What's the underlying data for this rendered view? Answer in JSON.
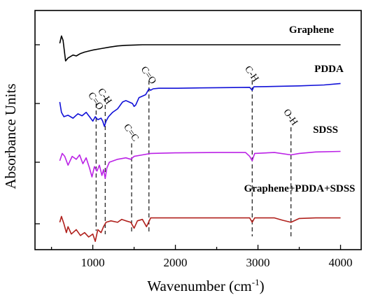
{
  "chart_data": {
    "type": "line",
    "xlabel": "Wavenumber (cm",
    "xlabel_sup": "-1",
    "xlabel_tail": ")",
    "ylabel": "Absorbance Units",
    "xlim": [
      300,
      4250
    ],
    "x_ticks": [
      1000,
      2000,
      3000,
      4000
    ],
    "x_tick_labels": [
      "1000",
      "2000",
      "3000",
      "4000"
    ],
    "grid": false,
    "series": [
      {
        "name": "Graphene",
        "color": "#000000",
        "points": [
          [
            600,
            0.05
          ],
          [
            620,
            0.3
          ],
          [
            640,
            0.15
          ],
          [
            670,
            -0.55
          ],
          [
            700,
            -0.45
          ],
          [
            760,
            -0.35
          ],
          [
            800,
            -0.38
          ],
          [
            850,
            -0.3
          ],
          [
            900,
            -0.25
          ],
          [
            1000,
            -0.18
          ],
          [
            1100,
            -0.13
          ],
          [
            1200,
            -0.08
          ],
          [
            1300,
            -0.04
          ],
          [
            1400,
            -0.02
          ],
          [
            1500,
            -0.01
          ],
          [
            1600,
            0.0
          ],
          [
            1800,
            0.0
          ],
          [
            2000,
            0.0
          ],
          [
            2500,
            0.0
          ],
          [
            3000,
            0.0
          ],
          [
            3500,
            0.0
          ],
          [
            4000,
            0.0
          ]
        ]
      },
      {
        "name": "PDDA",
        "color": "#1010d8",
        "points": [
          [
            600,
            0.05
          ],
          [
            620,
            -0.3
          ],
          [
            650,
            -0.45
          ],
          [
            700,
            -0.4
          ],
          [
            760,
            -0.5
          ],
          [
            820,
            -0.35
          ],
          [
            870,
            -0.42
          ],
          [
            920,
            -0.3
          ],
          [
            960,
            -0.45
          ],
          [
            1000,
            -0.6
          ],
          [
            1030,
            -0.45
          ],
          [
            1060,
            -0.55
          ],
          [
            1100,
            -0.5
          ],
          [
            1120,
            -0.6
          ],
          [
            1140,
            -0.78
          ],
          [
            1160,
            -0.6
          ],
          [
            1190,
            -0.45
          ],
          [
            1240,
            -0.3
          ],
          [
            1300,
            -0.18
          ],
          [
            1360,
            0.05
          ],
          [
            1400,
            0.1
          ],
          [
            1440,
            0.05
          ],
          [
            1480,
            0.0
          ],
          [
            1500,
            -0.1
          ],
          [
            1520,
            -0.05
          ],
          [
            1560,
            0.2
          ],
          [
            1600,
            0.25
          ],
          [
            1640,
            0.3
          ],
          [
            1680,
            0.5
          ],
          [
            1700,
            0.45
          ],
          [
            1730,
            0.5
          ],
          [
            1800,
            0.52
          ],
          [
            2000,
            0.52
          ],
          [
            2300,
            0.53
          ],
          [
            2600,
            0.54
          ],
          [
            2900,
            0.55
          ],
          [
            2930,
            0.45
          ],
          [
            2950,
            0.57
          ],
          [
            3200,
            0.58
          ],
          [
            3500,
            0.6
          ],
          [
            3800,
            0.63
          ],
          [
            4000,
            0.68
          ]
        ]
      },
      {
        "name": "SDSS",
        "color": "#bb22e6",
        "points": [
          [
            600,
            0.05
          ],
          [
            630,
            0.3
          ],
          [
            660,
            0.2
          ],
          [
            700,
            -0.1
          ],
          [
            750,
            0.2
          ],
          [
            800,
            0.1
          ],
          [
            840,
            0.25
          ],
          [
            880,
            -0.05
          ],
          [
            920,
            0.15
          ],
          [
            960,
            -0.2
          ],
          [
            990,
            -0.5
          ],
          [
            1020,
            -0.15
          ],
          [
            1050,
            -0.3
          ],
          [
            1080,
            -0.1
          ],
          [
            1110,
            -0.45
          ],
          [
            1130,
            -0.25
          ],
          [
            1150,
            -0.55
          ],
          [
            1170,
            -0.2
          ],
          [
            1200,
            0.0
          ],
          [
            1300,
            0.1
          ],
          [
            1400,
            0.15
          ],
          [
            1460,
            0.1
          ],
          [
            1500,
            0.2
          ],
          [
            1600,
            0.25
          ],
          [
            1700,
            0.3
          ],
          [
            2000,
            0.32
          ],
          [
            2500,
            0.33
          ],
          [
            2850,
            0.33
          ],
          [
            2900,
            0.2
          ],
          [
            2930,
            0.05
          ],
          [
            2960,
            0.3
          ],
          [
            3200,
            0.33
          ],
          [
            3400,
            0.25
          ],
          [
            3500,
            0.3
          ],
          [
            3700,
            0.35
          ],
          [
            4000,
            0.37
          ]
        ]
      },
      {
        "name": "Graphene+PDDA+SDSS",
        "color": "#b0201c",
        "points": [
          [
            600,
            0.05
          ],
          [
            620,
            0.25
          ],
          [
            650,
            0.0
          ],
          [
            680,
            -0.3
          ],
          [
            700,
            -0.1
          ],
          [
            740,
            -0.35
          ],
          [
            800,
            -0.2
          ],
          [
            850,
            -0.4
          ],
          [
            900,
            -0.3
          ],
          [
            950,
            -0.45
          ],
          [
            1000,
            -0.35
          ],
          [
            1030,
            -0.6
          ],
          [
            1060,
            -0.2
          ],
          [
            1100,
            -0.3
          ],
          [
            1130,
            -0.1
          ],
          [
            1160,
            0.05
          ],
          [
            1220,
            0.1
          ],
          [
            1300,
            0.05
          ],
          [
            1350,
            0.15
          ],
          [
            1400,
            0.1
          ],
          [
            1460,
            0.05
          ],
          [
            1500,
            -0.15
          ],
          [
            1540,
            0.1
          ],
          [
            1600,
            0.15
          ],
          [
            1650,
            -0.1
          ],
          [
            1700,
            0.2
          ],
          [
            1800,
            0.2
          ],
          [
            2000,
            0.2
          ],
          [
            2400,
            0.2
          ],
          [
            2900,
            0.2
          ],
          [
            2930,
            0.05
          ],
          [
            2960,
            0.2
          ],
          [
            3200,
            0.2
          ],
          [
            3300,
            0.12
          ],
          [
            3400,
            0.05
          ],
          [
            3500,
            0.18
          ],
          [
            3700,
            0.2
          ],
          [
            4000,
            0.2
          ]
        ]
      }
    ],
    "markers": [
      {
        "x": 1040,
        "label": "C=O"
      },
      {
        "x": 1150,
        "label": "C-H"
      },
      {
        "x": 1470,
        "label": "C=C"
      },
      {
        "x": 1680,
        "label": "C=O"
      },
      {
        "x": 2930,
        "label": "C-H"
      },
      {
        "x": 3400,
        "label": "O-H"
      }
    ]
  }
}
